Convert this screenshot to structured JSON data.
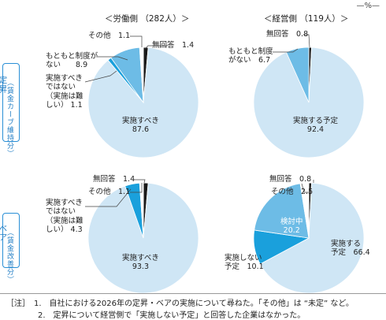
{
  "unit_label": "—%—",
  "headers": {
    "labor": "＜労働側 （282人）＞",
    "management": "＜経営側 （119人）＞"
  },
  "rows": {
    "teishō": {
      "label_main": "定昇",
      "label_sub": "（賃金カーブ維持分）"
    },
    "bea": {
      "label_main": "ベア",
      "label_sub": "（賃金改善分）"
    }
  },
  "chart_data": [
    {
      "type": "pie",
      "panel": "labor-teishō",
      "slices": [
        {
          "label": "無回答",
          "value": 1.4,
          "color": "#1a1a1a"
        },
        {
          "label": "実施すべき",
          "value": 87.6,
          "color": "#cfe6f5"
        },
        {
          "label": "実施すべきではない（実施は難しい）",
          "value": 1.1,
          "color": "#1aa0dc"
        },
        {
          "label": "もともと制度がない",
          "value": 8.9,
          "color": "#6dbce6"
        },
        {
          "label": "その他",
          "value": 1.1,
          "color": "#ffffff"
        }
      ]
    },
    {
      "type": "pie",
      "panel": "management-teishō",
      "slices": [
        {
          "label": "無回答",
          "value": 0.8,
          "color": "#1a1a1a"
        },
        {
          "label": "実施する予定",
          "value": 92.4,
          "color": "#cfe6f5"
        },
        {
          "label": "もともと制度がない",
          "value": 6.7,
          "color": "#6dbce6"
        }
      ]
    },
    {
      "type": "pie",
      "panel": "labor-bea",
      "slices": [
        {
          "label": "無回答",
          "value": 1.4,
          "color": "#1a1a1a"
        },
        {
          "label": "実施すべき",
          "value": 93.3,
          "color": "#cfe6f5"
        },
        {
          "label": "実施すべきではない（実施は難しい）",
          "value": 4.3,
          "color": "#1aa0dc"
        },
        {
          "label": "その他",
          "value": 1.1,
          "color": "#ffffff"
        }
      ]
    },
    {
      "type": "pie",
      "panel": "management-bea",
      "slices": [
        {
          "label": "無回答",
          "value": 0.8,
          "color": "#1a1a1a"
        },
        {
          "label": "実施する予定",
          "value": 66.4,
          "color": "#cfe6f5"
        },
        {
          "label": "実施しない予定",
          "value": 10.1,
          "color": "#1aa0dc"
        },
        {
          "label": "検討中",
          "value": 20.2,
          "color": "#6dbce6"
        },
        {
          "label": "その他",
          "value": 2.5,
          "color": "#ffffff"
        }
      ]
    }
  ],
  "labels": {
    "p1": {
      "mukaito": "無回答　1.4",
      "sonota": "その他　1.1",
      "motomoto": "もともと制度が\nない　　8.9",
      "subekidenai": "実施すべき\nではない\n（実施は難\nしい） 1.1",
      "subeki": "実施すべき\n87.6"
    },
    "p2": {
      "mukaito": "無回答　0.8",
      "motomoto": "もともと制度\nがない　6.7",
      "yotei": "実施する予定\n92.4"
    },
    "p3": {
      "mukaito": "無回答　1.4",
      "sonota": "その他　1.1",
      "subekidenai": "実施すべき\nではない\n（実施は難\nしい） 4.3",
      "subeki": "実施すべき\n93.3"
    },
    "p4": {
      "mukaito": "無回答　0.8",
      "sonota": "その他　2.5",
      "kentou": "検討中\n20.2",
      "shinai": "実施しない\n予定　10.1",
      "yotei": "実施する\n予定　66.4"
    }
  },
  "notes": {
    "line1": "［注］　1.　自社における2026年の定昇・ベアの実施について尋ねた。「その他」は “未定” など。",
    "line2": "　　　　2.　定昇について経営側で「実施しない予定」と回答した企業はなかった。"
  }
}
